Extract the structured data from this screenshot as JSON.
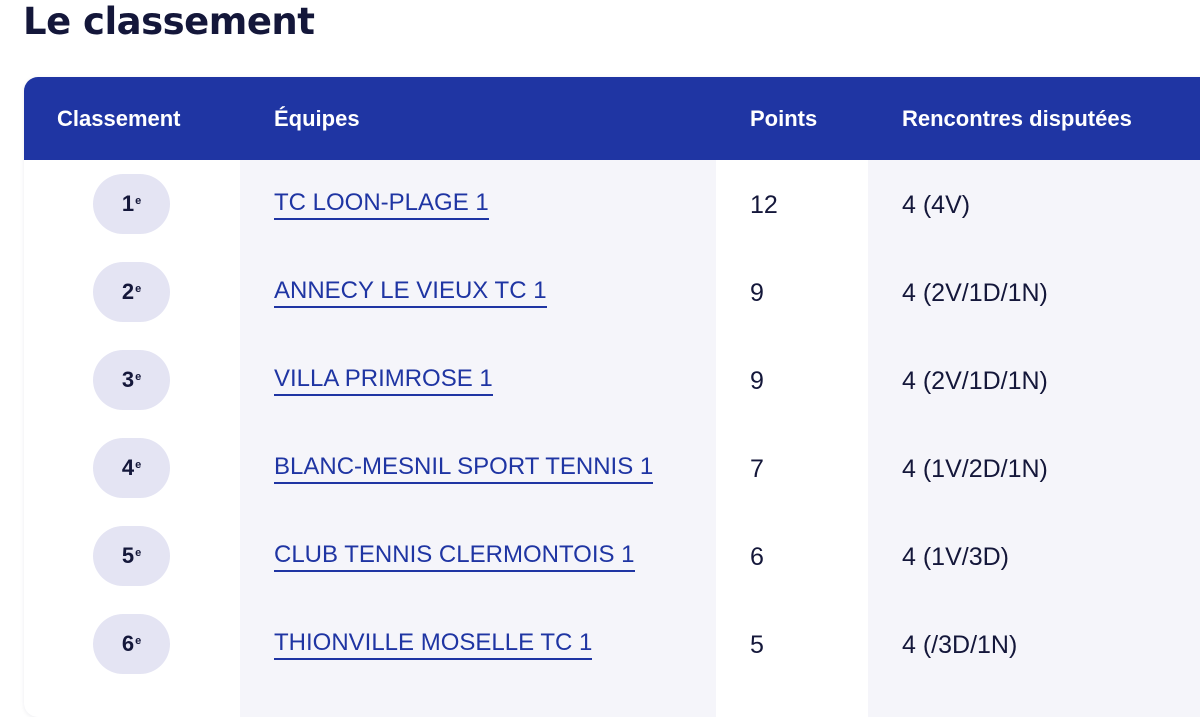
{
  "page": {
    "title": "Le classement"
  },
  "table": {
    "headers": {
      "rank": "Classement",
      "team": "Équipes",
      "points": "Points",
      "matches": "Rencontres disputées"
    },
    "rows": [
      {
        "rank": "1",
        "rank_suffix": "e",
        "team": "TC LOON-PLAGE 1",
        "points": "12",
        "matches": "4 (4V)"
      },
      {
        "rank": "2",
        "rank_suffix": "e",
        "team": "ANNECY LE VIEUX TC 1",
        "points": "9",
        "matches": "4 (2V/1D/1N)"
      },
      {
        "rank": "3",
        "rank_suffix": "e",
        "team": "VILLA PRIMROSE 1",
        "points": "9",
        "matches": "4 (2V/1D/1N)"
      },
      {
        "rank": "4",
        "rank_suffix": "e",
        "team": "BLANC-MESNIL SPORT TENNIS 1",
        "points": "7",
        "matches": "4 (1V/2D/1N)"
      },
      {
        "rank": "5",
        "rank_suffix": "e",
        "team": "CLUB TENNIS CLERMONTOIS 1",
        "points": "6",
        "matches": "4 (1V/3D)"
      },
      {
        "rank": "6",
        "rank_suffix": "e",
        "team": "THIONVILLE MOSELLE TC 1",
        "points": "5",
        "matches": "4 (/3D/1N)"
      }
    ]
  },
  "colors": {
    "header_bg": "#1f35a3",
    "link": "#1f35a3",
    "text": "#14173a",
    "rank_pill": "#e4e4f3",
    "row_alt_bg": "#f5f5fa"
  }
}
